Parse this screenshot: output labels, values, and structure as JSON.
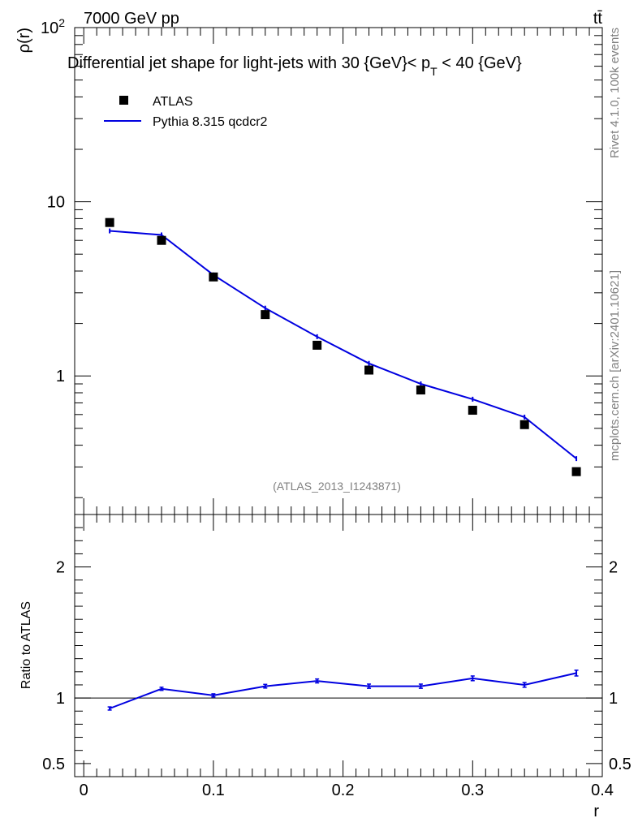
{
  "header": {
    "left": "7000 GeV pp",
    "right": "tt̄"
  },
  "side_labels": {
    "rivet": "Rivet 4.1.0,  100k events",
    "mcplots": "mcplots.cern.ch [arXiv:2401.10621]"
  },
  "chart_data": [
    {
      "type": "scatter",
      "panel": "main",
      "title": "Differential jet shape for light-jets with 30 {GeV}< p_T < 40 {GeV}",
      "title_parts": {
        "pre": "Differential jet shape for light-jets with 30 {GeV}< p",
        "sub": "T",
        "post": " < 40 {GeV}"
      },
      "watermark": "(ATLAS_2013_I1243871)",
      "ylabel": "ρ(r)",
      "xlabel": "r",
      "yscale": "log",
      "xlim": [
        -0.007,
        0.4
      ],
      "ylim": [
        0.16,
        100
      ],
      "ytick_labels": [
        {
          "value": 1,
          "label": "1"
        },
        {
          "value": 10,
          "label": "10"
        },
        {
          "value": 100,
          "label": "10",
          "sup": "2"
        }
      ],
      "legend_position": "top-left",
      "series": [
        {
          "name": "ATLAS",
          "style": "markers",
          "x": [
            0.02,
            0.06,
            0.1,
            0.14,
            0.18,
            0.22,
            0.26,
            0.3,
            0.34,
            0.38
          ],
          "y": [
            7.6,
            6.0,
            3.7,
            2.25,
            1.5,
            1.08,
            0.83,
            0.635,
            0.525,
            0.282
          ]
        },
        {
          "name": "Pythia 8.315 qcdcr2",
          "style": "line",
          "color": "#0000e0",
          "x": [
            0.02,
            0.06,
            0.1,
            0.14,
            0.18,
            0.22,
            0.26,
            0.3,
            0.34,
            0.38
          ],
          "y": [
            6.8,
            6.45,
            3.8,
            2.45,
            1.68,
            1.18,
            0.9,
            0.735,
            0.58,
            0.335
          ]
        }
      ]
    },
    {
      "type": "line",
      "panel": "ratio",
      "ylabel": "Ratio to ATLAS",
      "xlabel": "r",
      "xlim": [
        -0.007,
        0.4
      ],
      "ylim": [
        0.4,
        2.4
      ],
      "reference_line": 1,
      "ytick_labels": [
        {
          "value": 0.5,
          "label": "0.5"
        },
        {
          "value": 1,
          "label": "1"
        },
        {
          "value": 2,
          "label": "2"
        }
      ],
      "xtick_labels": [
        {
          "value": 0,
          "label": "0"
        },
        {
          "value": 0.1,
          "label": "0.1"
        },
        {
          "value": 0.2,
          "label": "0.2"
        },
        {
          "value": 0.3,
          "label": "0.3"
        },
        {
          "value": 0.4,
          "label": "0.4"
        }
      ],
      "series": [
        {
          "name": "Pythia 8.315 qcdcr2 / ATLAS",
          "color": "#0000e0",
          "x": [
            0.02,
            0.06,
            0.1,
            0.14,
            0.18,
            0.22,
            0.26,
            0.3,
            0.34,
            0.38
          ],
          "y": [
            0.92,
            1.07,
            1.02,
            1.09,
            1.13,
            1.09,
            1.09,
            1.15,
            1.1,
            1.19
          ],
          "err": [
            0.012,
            0.012,
            0.012,
            0.014,
            0.015,
            0.016,
            0.016,
            0.018,
            0.018,
            0.022
          ]
        }
      ]
    }
  ]
}
